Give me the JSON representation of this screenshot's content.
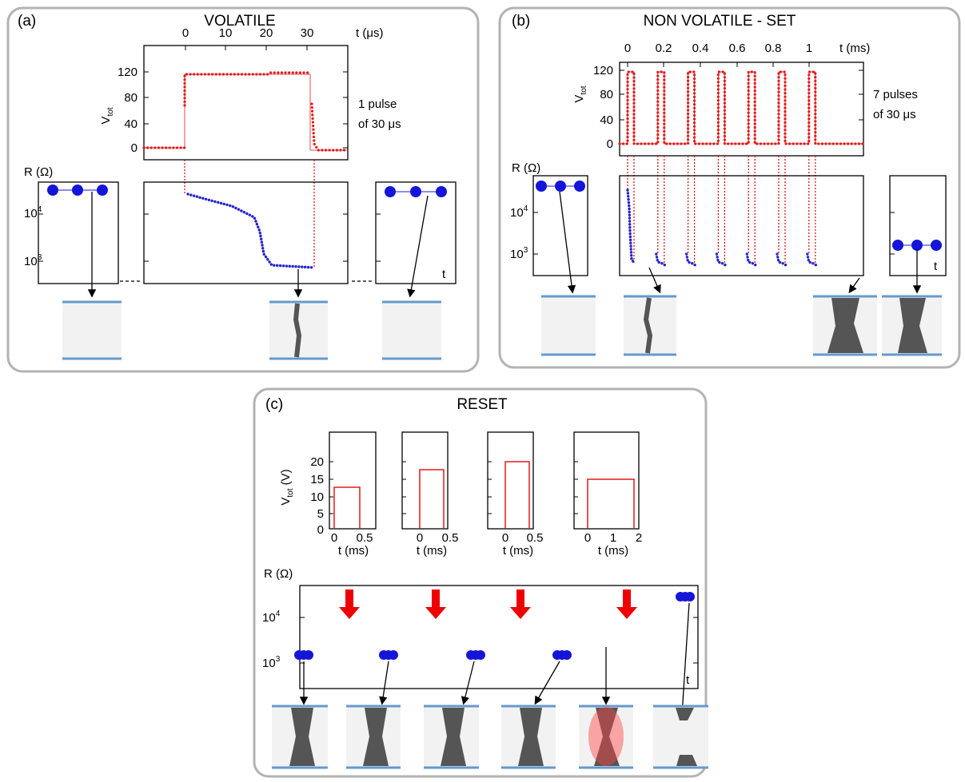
{
  "panels": [
    {
      "label": "(a)",
      "title": "VOLATILE",
      "x_axis_label": "t (μs)",
      "x_ticks": [
        "0",
        "10",
        "20",
        "30"
      ],
      "y_axis_label": {
        "main": "V",
        "sub": "tot"
      },
      "y_ticks": [
        "0",
        "40",
        "80",
        "120"
      ],
      "annotation": [
        "1 pulse",
        "of 30 μs"
      ],
      "r_label": "R (Ω)",
      "r_ticks": [
        {
          "base": "10",
          "exp": "4"
        },
        {
          "base": "10",
          "exp": "3"
        }
      ],
      "t_label": "t"
    },
    {
      "label": "(b)",
      "title": "NON VOLATILE - SET",
      "x_axis_label": "t (ms)",
      "x_ticks": [
        "0",
        "0.2",
        "0.4",
        "0.6",
        "0.8",
        "1"
      ],
      "y_axis_label": {
        "main": "V",
        "sub": "tot"
      },
      "y_ticks": [
        "0",
        "40",
        "80",
        "120"
      ],
      "annotation": [
        "7 pulses",
        "of 30 μs"
      ],
      "r_label": "R (Ω)",
      "r_ticks": [
        {
          "base": "10",
          "exp": "4"
        },
        {
          "base": "10",
          "exp": "3"
        }
      ],
      "t_label": "t"
    },
    {
      "label": "(c)",
      "title": "RESET",
      "y_axis_label": {
        "main": "V",
        "sub": "tot",
        "unit": " (V)"
      },
      "y_ticks": [
        "0",
        "5",
        "10",
        "15",
        "20"
      ],
      "x_axis_label": "t (ms)",
      "pulse_x_ticks": [
        [
          "0",
          "0.5"
        ],
        [
          "0",
          "0.5"
        ],
        [
          "0",
          "0.5"
        ],
        [
          "0",
          "1",
          "2"
        ]
      ],
      "r_label": "R (Ω)",
      "r_ticks": [
        {
          "base": "10",
          "exp": "4"
        },
        {
          "base": "10",
          "exp": "3"
        }
      ],
      "t_label": "t"
    }
  ]
}
